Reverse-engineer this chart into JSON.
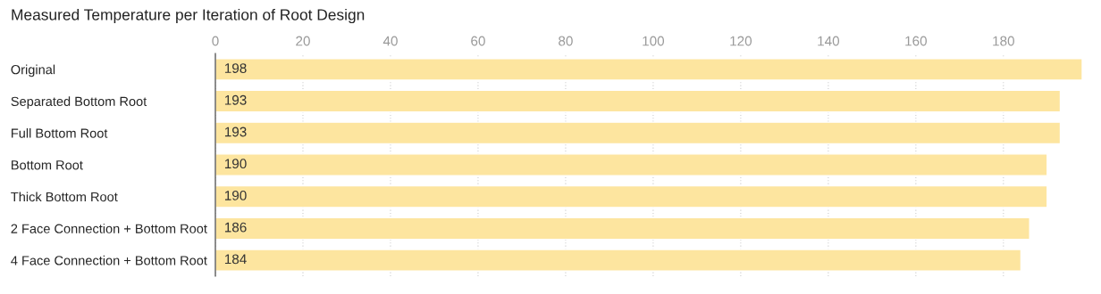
{
  "chart_data": {
    "type": "bar",
    "orientation": "horizontal",
    "title": "Measured Temperature per Iteration of Root Design",
    "categories": [
      "Original",
      "Separated Bottom Root",
      "Full Bottom Root",
      "Bottom Root",
      "Thick Bottom Root",
      "2 Face Connection + Bottom Root",
      "4 Face Connection + Bottom Root"
    ],
    "values": [
      198,
      193,
      193,
      190,
      190,
      186,
      184
    ],
    "color": "#fde59f",
    "xlim": [
      0,
      198
    ],
    "xticks": [
      0,
      20,
      40,
      60,
      80,
      100,
      120,
      140,
      160,
      180
    ],
    "grid": "x",
    "data_labels": true,
    "legend": false
  }
}
